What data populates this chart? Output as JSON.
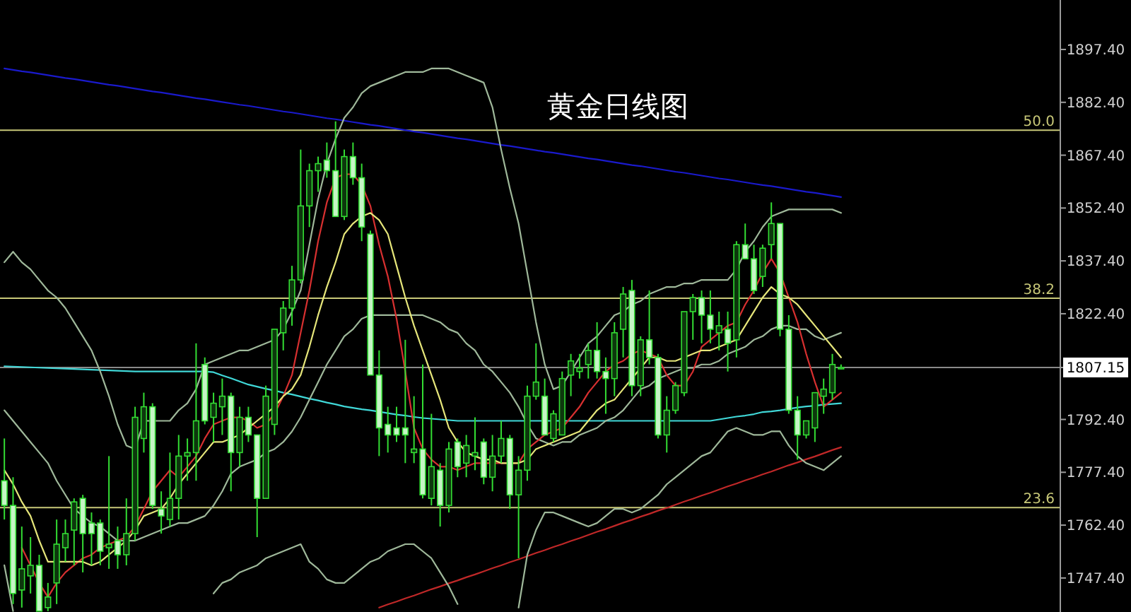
{
  "chart_data": {
    "type": "candlestick",
    "title": "黄金日线图",
    "color": "#33dd33",
    "tick_labels": "y",
    "grid": false,
    "categories": [
      null,
      null,
      null,
      null,
      null,
      null,
      null,
      null,
      null,
      null,
      null,
      null,
      null,
      null,
      null,
      null,
      null,
      null,
      null,
      null,
      null,
      null,
      null,
      null,
      null,
      null,
      null,
      null,
      null,
      null,
      null,
      null,
      null,
      null,
      null,
      null,
      null,
      null,
      null,
      null,
      null,
      null,
      null,
      null,
      null,
      null,
      null,
      null,
      null,
      null,
      null,
      null,
      null,
      null,
      null,
      null,
      null,
      null,
      null,
      null,
      null,
      null,
      null,
      null,
      null,
      null,
      null,
      null,
      null,
      null,
      null,
      null,
      null,
      null,
      null,
      null,
      null,
      null,
      null,
      null,
      null,
      null,
      null,
      null,
      null,
      null,
      null,
      null,
      null,
      null,
      null,
      null,
      null,
      null,
      null,
      null,
      null
    ],
    "annotations": [
      {
        "text": "50.0",
        "y": 1874.5
      },
      {
        "text": "38.2",
        "y": 1826.8
      },
      {
        "text": "23.6",
        "y": 1767.4
      }
    ],
    "ohlc": [
      [
        1775,
        1787,
        1764,
        1768
      ],
      [
        1768,
        1776,
        1740,
        1743
      ],
      [
        1744,
        1762,
        1739,
        1750
      ],
      [
        1748,
        1759,
        1743,
        1751
      ],
      [
        1751,
        1754,
        1738,
        1738
      ],
      [
        1739,
        1746,
        1738,
        1742
      ],
      [
        1746,
        1764,
        1740,
        1757
      ],
      [
        1756,
        1764,
        1752,
        1760
      ],
      [
        1761,
        1770,
        1751,
        1769
      ],
      [
        1770,
        1771,
        1749,
        1760
      ],
      [
        1763,
        1766,
        1751,
        1760
      ],
      [
        1763,
        1764,
        1751,
        1755
      ],
      [
        1756,
        1782,
        1750,
        1757
      ],
      [
        1758,
        1762,
        1750,
        1754
      ],
      [
        1754,
        1770,
        1751,
        1760
      ],
      [
        1760,
        1796,
        1758,
        1793
      ],
      [
        1787,
        1800,
        1783,
        1796
      ],
      [
        1796,
        1797,
        1767,
        1768
      ],
      [
        1767,
        1772,
        1760,
        1765
      ],
      [
        1764,
        1783,
        1762,
        1770
      ],
      [
        1770,
        1788,
        1764,
        1782
      ],
      [
        1782,
        1787,
        1775,
        1783
      ],
      [
        1783,
        1814,
        1775,
        1792
      ],
      [
        1808,
        1810,
        1791,
        1792
      ],
      [
        1793,
        1800,
        1786,
        1797
      ],
      [
        1796,
        1804,
        1788,
        1799
      ],
      [
        1799,
        1800,
        1772,
        1783
      ],
      [
        1783,
        1796,
        1779,
        1793
      ],
      [
        1793,
        1796,
        1786,
        1788
      ],
      [
        1788,
        1788,
        1759,
        1770
      ],
      [
        1770,
        1802,
        1770,
        1799
      ],
      [
        1791,
        1818,
        1788,
        1818
      ],
      [
        1817,
        1826,
        1812,
        1824
      ],
      [
        1824,
        1836,
        1819,
        1832
      ],
      [
        1832,
        1869,
        1831,
        1853
      ],
      [
        1853,
        1865,
        1847,
        1863
      ],
      [
        1863,
        1867,
        1857,
        1865
      ],
      [
        1866,
        1871,
        1861,
        1863
      ],
      [
        1863,
        1877,
        1850,
        1850
      ],
      [
        1850,
        1869,
        1849,
        1867
      ],
      [
        1867,
        1871,
        1859,
        1861
      ],
      [
        1861,
        1865,
        1843,
        1847
      ],
      [
        1845,
        1846,
        1805,
        1805
      ],
      [
        1805,
        1812,
        1782,
        1790
      ],
      [
        1791,
        1796,
        1783,
        1788
      ],
      [
        1790,
        1796,
        1786,
        1788
      ],
      [
        1790,
        1815,
        1780,
        1788
      ],
      [
        1783,
        1799,
        1780,
        1784
      ],
      [
        1784,
        1808,
        1770,
        1771
      ],
      [
        1770,
        1794,
        1768,
        1779
      ],
      [
        1778,
        1780,
        1762,
        1768
      ],
      [
        1768,
        1786,
        1766,
        1784
      ],
      [
        1786,
        1787,
        1776,
        1779
      ],
      [
        1780,
        1788,
        1776,
        1785
      ],
      [
        1782,
        1793,
        1778,
        1783
      ],
      [
        1786,
        1787,
        1774,
        1776
      ],
      [
        1776,
        1788,
        1772,
        1782
      ],
      [
        1782,
        1792,
        1780,
        1787
      ],
      [
        1787,
        1788,
        1767,
        1771
      ],
      [
        1771,
        1782,
        1753,
        1778
      ],
      [
        1778,
        1802,
        1775,
        1799
      ],
      [
        1799,
        1814,
        1798,
        1803
      ],
      [
        1799,
        1804,
        1788,
        1788
      ],
      [
        1787,
        1795,
        1786,
        1794
      ],
      [
        1788,
        1806,
        1788,
        1804
      ],
      [
        1805,
        1811,
        1799,
        1809
      ],
      [
        1806,
        1811,
        1804,
        1807
      ],
      [
        1808,
        1814,
        1804,
        1812
      ],
      [
        1812,
        1820,
        1804,
        1806
      ],
      [
        1806,
        1810,
        1794,
        1804
      ],
      [
        1804,
        1820,
        1799,
        1817
      ],
      [
        1818,
        1830,
        1810,
        1828
      ],
      [
        1829,
        1832,
        1799,
        1802
      ],
      [
        1802,
        1816,
        1799,
        1815
      ],
      [
        1815,
        1829,
        1808,
        1810
      ],
      [
        1810,
        1811,
        1787,
        1788
      ],
      [
        1788,
        1799,
        1783,
        1795
      ],
      [
        1795,
        1803,
        1794,
        1802
      ],
      [
        1800,
        1823,
        1799,
        1823
      ],
      [
        1823,
        1828,
        1815,
        1827
      ],
      [
        1827,
        1829,
        1814,
        1822
      ],
      [
        1822,
        1829,
        1814,
        1818
      ],
      [
        1817,
        1823,
        1812,
        1819
      ],
      [
        1818,
        1823,
        1806,
        1814
      ],
      [
        1815,
        1843,
        1810,
        1842
      ],
      [
        1842,
        1848,
        1838,
        1838
      ],
      [
        1838,
        1842,
        1828,
        1829
      ],
      [
        1833,
        1842,
        1830,
        1841
      ],
      [
        1842,
        1854,
        1838,
        1848
      ],
      [
        1848,
        1848,
        1816,
        1818
      ],
      [
        1818,
        1822,
        1794,
        1795
      ],
      [
        1795,
        1799,
        1781,
        1788
      ],
      [
        1788,
        1792,
        1787,
        1792
      ],
      [
        1790,
        1800,
        1786,
        1800
      ],
      [
        1799,
        1804,
        1794,
        1801
      ],
      [
        1800,
        1811,
        1798,
        1808
      ],
      [
        1807,
        1808,
        1806.7,
        1807.15
      ]
    ],
    "series": [
      {
        "type": "line",
        "color": "#1a1acc",
        "values": [
          1892.0,
          1891.6,
          1891.2,
          1890.9,
          1890.5,
          1890.1,
          1889.7,
          1889.3,
          1889.0,
          1888.6,
          1888.2,
          1887.8,
          1887.4,
          1887.1,
          1886.7,
          1886.3,
          1885.9,
          1885.5,
          1885.2,
          1884.8,
          1884.4,
          1884.0,
          1883.6,
          1883.3,
          1882.9,
          1882.5,
          1882.1,
          1881.7,
          1881.4,
          1881.0,
          1880.6,
          1880.2,
          1879.8,
          1879.5,
          1879.1,
          1878.7,
          1878.3,
          1877.9,
          1877.6,
          1877.2,
          1876.8,
          1876.4,
          1876.0,
          1875.7,
          1875.3,
          1874.9,
          1874.5,
          1874.1,
          1873.8,
          1873.4,
          1873.0,
          1872.6,
          1872.2,
          1871.9,
          1871.5,
          1871.1,
          1870.7,
          1870.3,
          1870.0,
          1869.6,
          1869.2,
          1868.8,
          1868.4,
          1868.1,
          1867.7,
          1867.3,
          1866.9,
          1866.5,
          1866.2,
          1865.8,
          1865.4,
          1865.0,
          1864.6,
          1864.3,
          1863.9,
          1863.5,
          1863.1,
          1862.7,
          1862.4,
          1862.0,
          1861.6,
          1861.2,
          1860.8,
          1860.5,
          1860.1,
          1859.7,
          1859.3,
          1858.9,
          1858.6,
          1858.2,
          1857.8,
          1857.4,
          1857.0,
          1856.7,
          1856.3,
          1855.9,
          1855.5
        ]
      },
      {
        "type": "line",
        "color": "#c02828",
        "values": [
          null,
          null,
          null,
          null,
          null,
          null,
          null,
          null,
          null,
          null,
          null,
          null,
          null,
          null,
          null,
          null,
          null,
          null,
          null,
          null,
          null,
          null,
          null,
          null,
          null,
          null,
          null,
          null,
          null,
          null,
          null,
          null,
          null,
          null,
          null,
          null,
          null,
          null,
          null,
          null,
          null,
          null,
          null,
          1739.0,
          1739.9,
          1740.7,
          1741.6,
          1742.4,
          1743.3,
          1744.2,
          1745.0,
          1745.9,
          1746.7,
          1747.6,
          1748.4,
          1749.3,
          1750.2,
          1751.0,
          1751.9,
          1752.7,
          1753.6,
          1754.5,
          1755.3,
          1756.2,
          1757.0,
          1757.9,
          1758.7,
          1759.6,
          1760.5,
          1761.3,
          1762.2,
          1763.1,
          1763.9,
          1764.8,
          1765.6,
          1766.5,
          1767.3,
          1768.2,
          1769.1,
          1769.9,
          1770.8,
          1771.6,
          1772.5,
          1773.4,
          1774.2,
          1775.1,
          1775.9,
          1776.8,
          1777.6,
          1778.5,
          1779.4,
          1780.2,
          1781.1,
          1781.9,
          1782.8,
          1783.7,
          1784.5
        ]
      },
      {
        "type": "line",
        "color": "#40d8d8",
        "values": [
          1807.5,
          1807.4,
          1807.3,
          1807.2,
          1807.1,
          1807,
          1806.9,
          1806.8,
          1806.7,
          1806.6,
          1806.5,
          1806.4,
          1806.3,
          1806.2,
          1806.1,
          1806,
          1806,
          1806,
          1806,
          1806,
          1806,
          1806,
          1806,
          1806,
          1805.8,
          1804.9,
          1804.1,
          1803.2,
          1802.3,
          1801.7,
          1801.1,
          1800.6,
          1800.0,
          1799.5,
          1798.9,
          1798.3,
          1797.8,
          1797.2,
          1796.7,
          1796.1,
          1795.7,
          1795.3,
          1795.0,
          1794.6,
          1794.2,
          1793.8,
          1793.5,
          1793.1,
          1792.8,
          1792.6,
          1792.4,
          1792.2,
          1792,
          1792,
          1792,
          1792,
          1792,
          1792,
          1792,
          1792,
          1792,
          1792,
          1792,
          1792,
          1792,
          1792,
          1792,
          1792,
          1792,
          1792,
          1792,
          1792,
          1792,
          1792,
          1792,
          1792,
          1792,
          1792,
          1792,
          1792,
          1792,
          1792.0,
          1792.4,
          1792.8,
          1793.2,
          1793.5,
          1793.9,
          1794.5,
          1794.7,
          1795.0,
          1795.4,
          1795.8,
          1796.1,
          1796.3,
          1796.6,
          1796.8,
          1797.0
        ]
      },
      {
        "type": "line",
        "color": "#9fb89a",
        "values": [
          1837,
          1840,
          1837,
          1835,
          1832,
          1829,
          1827,
          1824,
          1820,
          1816,
          1812,
          1806,
          1799,
          1791,
          1785,
          1784,
          1792,
          1792,
          1792,
          1792,
          1795,
          1797,
          1801,
          1808,
          1809,
          1810,
          1811,
          1812,
          1812,
          1813,
          1814,
          1815,
          1818,
          1823,
          1829,
          1842,
          1855,
          1865,
          1872,
          1878,
          1881,
          1885,
          1887,
          1888,
          1889,
          1890,
          1891,
          1891,
          1891,
          1892,
          1892,
          1892,
          1891,
          1890,
          1889,
          1888,
          1881,
          1869,
          1858,
          1848,
          1834,
          1820,
          1808,
          1801,
          1802,
          1806,
          1810,
          1814,
          1816,
          1819,
          1822,
          1823,
          1825,
          1826,
          1828,
          1829,
          1830,
          1830,
          1831,
          1831,
          1832,
          1832,
          1832,
          1832,
          1835,
          1840,
          1843,
          1847,
          1850,
          1851,
          1852,
          1852,
          1852,
          1852,
          1852,
          1852,
          1851
        ]
      },
      {
        "type": "line",
        "color": "#9fb89a",
        "values": [
          1795,
          1792,
          1789,
          1786,
          1783,
          1780,
          1775,
          1771,
          1767,
          1765,
          1763,
          1762,
          1760,
          1758,
          1758,
          1758,
          1759,
          1760,
          1761,
          1762,
          1763,
          1763,
          1764,
          1765,
          1768,
          1772,
          1777,
          1779,
          1780,
          1781,
          1783,
          1784,
          1786,
          1789,
          1793,
          1798,
          1803,
          1808,
          1812,
          1816,
          1818,
          1821,
          1822,
          1822,
          1822,
          1822,
          1822,
          1822,
          1822,
          1821,
          1820,
          1818,
          1817,
          1814,
          1812,
          1808,
          1806,
          1803,
          1800,
          1796,
          1791,
          1787,
          1786,
          1785,
          1786,
          1786,
          1788,
          1789,
          1790,
          1792,
          1793,
          1795,
          1798,
          1801,
          1802,
          1804,
          1805,
          1806,
          1807,
          1807,
          1808,
          1808,
          1809,
          1811,
          1812,
          1813,
          1815,
          1816,
          1818,
          1819,
          1819,
          1818,
          1818,
          1816,
          1815,
          1816,
          1817
        ]
      },
      {
        "type": "line",
        "color": "#9fb89a",
        "values": [
          1751,
          1738,
          null,
          null,
          null,
          null,
          null,
          null,
          null,
          null,
          null,
          null,
          null,
          null,
          null,
          null,
          null,
          null,
          null,
          null,
          null,
          null,
          null,
          null,
          1743,
          1746,
          1747,
          1749,
          1750,
          1751,
          1753,
          1754,
          1755,
          1756,
          1757,
          1752,
          1750,
          1747,
          1746,
          1746,
          1748,
          1750,
          1752,
          1753,
          1755,
          1756,
          1757,
          1757,
          1755,
          1753,
          1749,
          1745,
          1740,
          null,
          null,
          null,
          null,
          null,
          null,
          1739,
          1754,
          1761,
          1766,
          1766,
          1765,
          1764,
          1763,
          1762,
          1763,
          1765,
          1767,
          1767,
          1766,
          1767,
          1769,
          1771,
          1774,
          1776,
          1778,
          1780,
          1782,
          1783,
          1786,
          1789,
          1790,
          1789,
          1788,
          1788,
          1789,
          1789,
          1785,
          1782,
          1780,
          1779,
          1778,
          1780,
          1782
        ]
      },
      {
        "type": "line",
        "color": "#d83030",
        "values": [
          null,
          null,
          1756,
          1751,
          1746,
          1742,
          1746,
          1749,
          1751,
          1753,
          1754,
          1756,
          1757,
          1758,
          1759,
          1762,
          1767,
          1772,
          1775,
          1778,
          1776,
          1779,
          1782,
          1787,
          1791,
          1792,
          1793,
          1793,
          1792,
          1790,
          1791,
          1794,
          1799,
          1805,
          1817,
          1829,
          1843,
          1854,
          1861,
          1862,
          1862,
          1859,
          1853,
          1842,
          1833,
          1821,
          1806,
          1790,
          1784,
          1781,
          1779,
          1779,
          1778,
          1779,
          1780,
          1780,
          1780,
          1780,
          1780,
          1780,
          1784,
          1786,
          1788,
          1789,
          1790,
          1793,
          1796,
          1800,
          1803,
          1806,
          1808,
          1809,
          1811,
          1812,
          1811,
          1810,
          1805,
          1802,
          1802,
          1806,
          1813,
          1815,
          1817,
          1819,
          1820,
          1825,
          1829,
          1834,
          1838,
          1834,
          1827,
          1820,
          1811,
          1803,
          1796,
          1798,
          1800
        ]
      },
      {
        "type": "line",
        "color": "#e6e67a",
        "values": [
          1778,
          1774,
          1769,
          1765,
          1758,
          1752,
          1752,
          1752,
          1752,
          1752,
          1751,
          1752,
          1754,
          1756,
          1758,
          1761,
          1765,
          1766,
          1767,
          1770,
          1774,
          1777,
          1780,
          1783,
          1786,
          1786,
          1787,
          1788,
          1790,
          1792,
          1794,
          1796,
          1799,
          1801,
          1805,
          1813,
          1822,
          1830,
          1837,
          1845,
          1848,
          1850,
          1851,
          1849,
          1845,
          1836,
          1827,
          1819,
          1812,
          1805,
          1798,
          1790,
          1786,
          1783,
          1782,
          1781,
          1781,
          1780,
          1780,
          1780,
          1781,
          1784,
          1785,
          1786,
          1787,
          1788,
          1789,
          1792,
          1795,
          1797,
          1798,
          1801,
          1804,
          1807,
          1810,
          1810,
          1809,
          1809,
          1810,
          1811,
          1812,
          1812,
          1813,
          1814,
          1815,
          1819,
          1823,
          1827,
          1830,
          1828,
          1827,
          1825,
          1822,
          1819,
          1816,
          1813,
          1810
        ]
      }
    ],
    "ylim": [
      1737.75,
      1911.44
    ],
    "yticks": [
      {
        "value": 1897.4,
        "label": "1897.40"
      },
      {
        "value": 1882.4,
        "label": "1882.40"
      },
      {
        "value": 1867.4,
        "label": "1867.40"
      },
      {
        "value": 1852.4,
        "label": "1852.40"
      },
      {
        "value": 1837.4,
        "label": "1837.40"
      },
      {
        "value": 1822.4,
        "label": "1822.40"
      },
      {
        "value": 1807.15,
        "label": "1807.15"
      },
      {
        "value": 1792.4,
        "label": "1792.40"
      },
      {
        "value": 1777.4,
        "label": "1777.40"
      },
      {
        "value": 1762.4,
        "label": "1762.40"
      },
      {
        "value": 1747.4,
        "label": "1747.40"
      }
    ],
    "ref_lines": [
      {
        "axis": "y",
        "value": 1874.5,
        "color": "#c8c878"
      },
      {
        "axis": "y",
        "value": 1826.8,
        "color": "#c8c878"
      },
      {
        "axis": "y",
        "value": 1767.4,
        "color": "#c8c878"
      },
      {
        "axis": "y",
        "value": 1807.15,
        "color": "#8a8a8a"
      }
    ]
  }
}
